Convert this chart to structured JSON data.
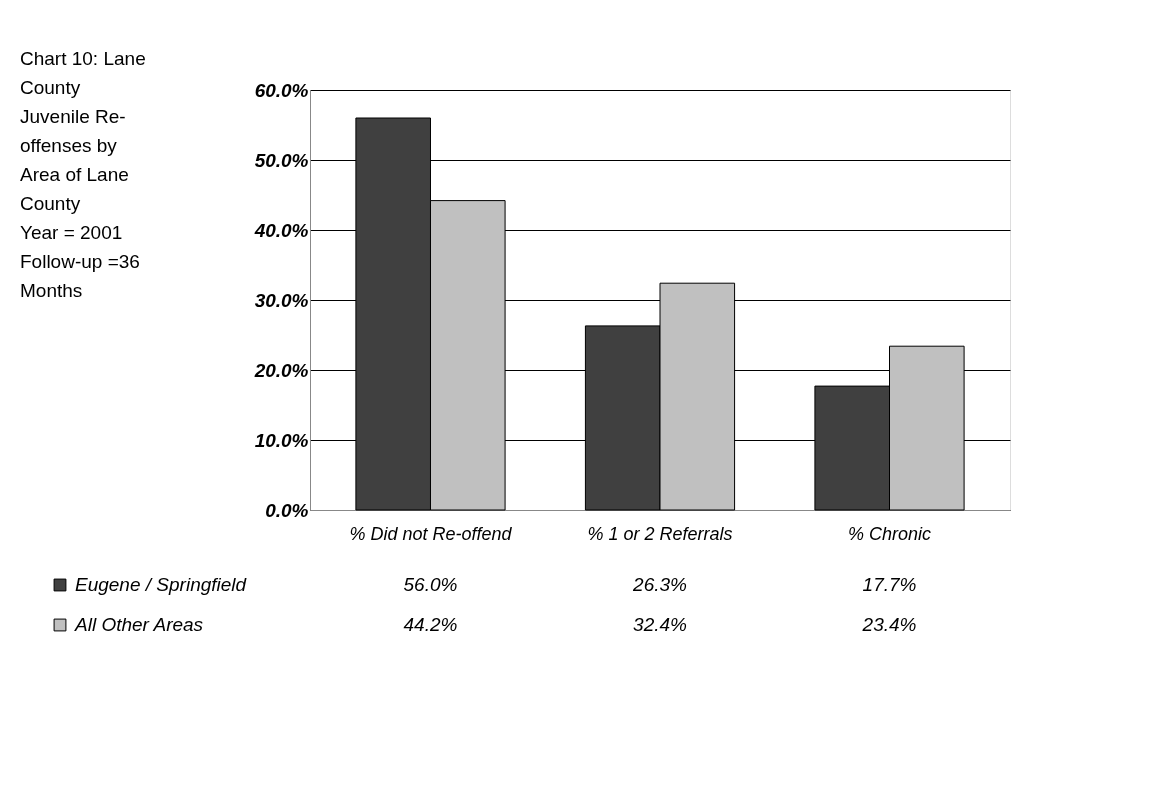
{
  "chart_data": {
    "type": "bar",
    "title": "Chart 10: Lane County Juvenile Re-offenses by Area of Lane County",
    "annotations": [
      "Year = 2001",
      "Follow-up =36 Months"
    ],
    "categories": [
      "% Did not Re-offend",
      "% 1 or 2 Referrals",
      "% Chronic"
    ],
    "series": [
      {
        "name": "Eugene / Springfield",
        "color": "#404040",
        "values": [
          56.0,
          26.3,
          17.7
        ],
        "value_labels": [
          "56.0%",
          "26.3%",
          "17.7%"
        ]
      },
      {
        "name": "All Other Areas",
        "color": "#c0c0c0",
        "values": [
          44.2,
          32.4,
          23.4
        ],
        "value_labels": [
          "44.2%",
          "32.4%",
          "23.4%"
        ]
      }
    ],
    "ylim": [
      0,
      60
    ],
    "yticks": [
      {
        "value": 0,
        "label": "0.0%"
      },
      {
        "value": 10,
        "label": "10.0%"
      },
      {
        "value": 20,
        "label": "20.0%"
      },
      {
        "value": 30,
        "label": "30.0%"
      },
      {
        "value": 40,
        "label": "40.0%"
      },
      {
        "value": 50,
        "label": "50.0%"
      },
      {
        "value": 60,
        "label": "60.0%"
      }
    ],
    "grid": "y",
    "legend": "bottom left"
  }
}
